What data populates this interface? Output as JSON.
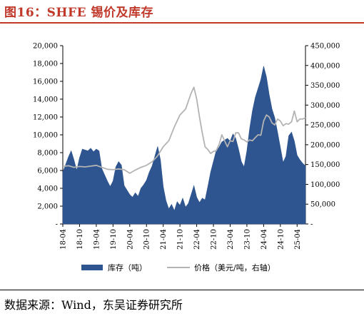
{
  "header": {
    "title": "图16：SHFE 锡价及库存"
  },
  "footer": {
    "source": "数据来源：Wind，东吴证券研究所"
  },
  "colors": {
    "title": "#c0392b",
    "inventory": "#2e5590",
    "price": "#b3b3b3"
  },
  "chart_data": {
    "type": "area",
    "x_ticks": [
      "18-04",
      "18-10",
      "19-04",
      "19-10",
      "20-04",
      "20-10",
      "21-04",
      "21-10",
      "22-04",
      "22-10",
      "23-04",
      "23-10",
      "24-04",
      "24-10",
      "25-04"
    ],
    "y_left": {
      "range": [
        0,
        20000
      ],
      "ticks": [
        "-",
        "2,000",
        "4,000",
        "6,000",
        "8,000",
        "10,000",
        "12,000",
        "14,000",
        "16,000",
        "18,000",
        "20,000"
      ]
    },
    "y_right": {
      "range": [
        0,
        450000
      ],
      "ticks": [
        "-",
        "50,000",
        "100,000",
        "150,000",
        "200,000",
        "250,000",
        "300,000",
        "350,000",
        "400,000",
        "450,000"
      ]
    },
    "x_range": [
      "2018-04",
      "2025-07"
    ],
    "legend_position": "bottom",
    "grid": false,
    "series": [
      {
        "name": "库存（吨）",
        "kind": "area",
        "axis": "left",
        "points": [
          [
            "2018-04",
            5800
          ],
          [
            "2018-06",
            7500
          ],
          [
            "2018-07",
            8200
          ],
          [
            "2018-08",
            7200
          ],
          [
            "2018-09",
            6000
          ],
          [
            "2018-10",
            7400
          ],
          [
            "2018-11",
            8400
          ],
          [
            "2018-12",
            8300
          ],
          [
            "2019-01",
            8200
          ],
          [
            "2019-02",
            8500
          ],
          [
            "2019-03",
            8100
          ],
          [
            "2019-04",
            8400
          ],
          [
            "2019-05",
            8200
          ],
          [
            "2019-06",
            6200
          ],
          [
            "2019-07",
            5500
          ],
          [
            "2019-08",
            4800
          ],
          [
            "2019-09",
            4200
          ],
          [
            "2019-10",
            4800
          ],
          [
            "2019-11",
            6400
          ],
          [
            "2019-12",
            7000
          ],
          [
            "2020-01",
            6600
          ],
          [
            "2020-02",
            4300
          ],
          [
            "2020-03",
            3800
          ],
          [
            "2020-04",
            3300
          ],
          [
            "2020-05",
            3000
          ],
          [
            "2020-06",
            3500
          ],
          [
            "2020-07",
            3100
          ],
          [
            "2020-08",
            4000
          ],
          [
            "2020-09",
            4400
          ],
          [
            "2020-10",
            4900
          ],
          [
            "2020-11",
            5800
          ],
          [
            "2020-12",
            6500
          ],
          [
            "2021-01",
            7600
          ],
          [
            "2021-02",
            8700
          ],
          [
            "2021-03",
            7200
          ],
          [
            "2021-04",
            4200
          ],
          [
            "2021-05",
            2600
          ],
          [
            "2021-06",
            1700
          ],
          [
            "2021-07",
            2200
          ],
          [
            "2021-08",
            1500
          ],
          [
            "2021-09",
            2500
          ],
          [
            "2021-10",
            2100
          ],
          [
            "2021-11",
            2900
          ],
          [
            "2021-12",
            1900
          ],
          [
            "2022-01",
            2300
          ],
          [
            "2022-02",
            3300
          ],
          [
            "2022-03",
            4300
          ],
          [
            "2022-04",
            3000
          ],
          [
            "2022-05",
            2400
          ],
          [
            "2022-06",
            2900
          ],
          [
            "2022-07",
            2700
          ],
          [
            "2022-08",
            4200
          ],
          [
            "2022-09",
            5800
          ],
          [
            "2022-10",
            7000
          ],
          [
            "2022-11",
            8200
          ],
          [
            "2022-12",
            8600
          ],
          [
            "2023-01",
            9200
          ],
          [
            "2023-02",
            9400
          ],
          [
            "2023-03",
            9600
          ],
          [
            "2023-04",
            9300
          ],
          [
            "2023-05",
            10100
          ],
          [
            "2023-06",
            9600
          ],
          [
            "2023-07",
            8400
          ],
          [
            "2023-08",
            7000
          ],
          [
            "2023-09",
            6400
          ],
          [
            "2023-10",
            8200
          ],
          [
            "2023-11",
            10700
          ],
          [
            "2023-12",
            12700
          ],
          [
            "2024-01",
            14200
          ],
          [
            "2024-02",
            15200
          ],
          [
            "2024-03",
            16200
          ],
          [
            "2024-04",
            17700
          ],
          [
            "2024-05",
            16500
          ],
          [
            "2024-06",
            14500
          ],
          [
            "2024-07",
            12900
          ],
          [
            "2024-08",
            11900
          ],
          [
            "2024-09",
            10300
          ],
          [
            "2024-10",
            8600
          ],
          [
            "2024-11",
            6900
          ],
          [
            "2024-12",
            7600
          ],
          [
            "2025-01",
            9900
          ],
          [
            "2025-02",
            10300
          ],
          [
            "2025-03",
            9300
          ],
          [
            "2025-04",
            7700
          ],
          [
            "2025-05",
            7200
          ],
          [
            "2025-06",
            6800
          ],
          [
            "2025-07",
            6500
          ]
        ]
      },
      {
        "name": "价格（美元/吨，右轴）",
        "kind": "line",
        "axis": "right",
        "points": [
          [
            "2018-04",
            145000
          ],
          [
            "2018-06",
            147000
          ],
          [
            "2018-08",
            143000
          ],
          [
            "2018-10",
            145000
          ],
          [
            "2018-12",
            144000
          ],
          [
            "2019-02",
            146000
          ],
          [
            "2019-04",
            148000
          ],
          [
            "2019-06",
            143000
          ],
          [
            "2019-08",
            138000
          ],
          [
            "2019-10",
            137000
          ],
          [
            "2019-12",
            139000
          ],
          [
            "2020-02",
            137000
          ],
          [
            "2020-04",
            128000
          ],
          [
            "2020-06",
            136000
          ],
          [
            "2020-08",
            143000
          ],
          [
            "2020-10",
            148000
          ],
          [
            "2020-12",
            157000
          ],
          [
            "2021-02",
            172000
          ],
          [
            "2021-04",
            195000
          ],
          [
            "2021-06",
            210000
          ],
          [
            "2021-08",
            245000
          ],
          [
            "2021-10",
            275000
          ],
          [
            "2021-12",
            290000
          ],
          [
            "2022-02",
            330000
          ],
          [
            "2022-03",
            345000
          ],
          [
            "2022-04",
            315000
          ],
          [
            "2022-05",
            270000
          ],
          [
            "2022-06",
            230000
          ],
          [
            "2022-07",
            195000
          ],
          [
            "2022-08",
            188000
          ],
          [
            "2022-09",
            178000
          ],
          [
            "2022-10",
            183000
          ],
          [
            "2022-11",
            185000
          ],
          [
            "2022-12",
            200000
          ],
          [
            "2023-01",
            225000
          ],
          [
            "2023-02",
            210000
          ],
          [
            "2023-03",
            195000
          ],
          [
            "2023-04",
            210000
          ],
          [
            "2023-05",
            208000
          ],
          [
            "2023-06",
            230000
          ],
          [
            "2023-07",
            230000
          ],
          [
            "2023-08",
            215000
          ],
          [
            "2023-09",
            212000
          ],
          [
            "2023-10",
            207000
          ],
          [
            "2023-11",
            212000
          ],
          [
            "2023-12",
            210000
          ],
          [
            "2024-01",
            218000
          ],
          [
            "2024-02",
            225000
          ],
          [
            "2024-03",
            224000
          ],
          [
            "2024-04",
            260000
          ],
          [
            "2024-05",
            275000
          ],
          [
            "2024-06",
            270000
          ],
          [
            "2024-07",
            255000
          ],
          [
            "2024-08",
            250000
          ],
          [
            "2024-09",
            265000
          ],
          [
            "2024-10",
            260000
          ],
          [
            "2024-11",
            248000
          ],
          [
            "2024-12",
            253000
          ],
          [
            "2025-01",
            252000
          ],
          [
            "2025-02",
            258000
          ],
          [
            "2025-03",
            285000
          ],
          [
            "2025-04",
            258000
          ],
          [
            "2025-05",
            265000
          ],
          [
            "2025-06",
            265000
          ],
          [
            "2025-07",
            268000
          ]
        ]
      }
    ]
  }
}
